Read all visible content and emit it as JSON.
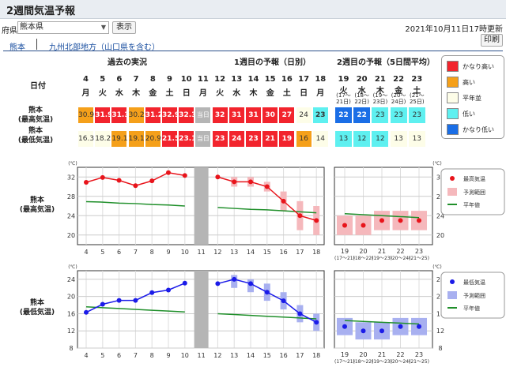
{
  "page": {
    "title": "2週間気温予報",
    "pref_label": "府県",
    "pref_value": "熊本県",
    "show_button": "表示",
    "updated": "2021年10月11日17時更新",
    "print_button": "印刷",
    "tabs": [
      "熊本",
      "九州北部地方（山口県を含む）"
    ]
  },
  "sections": {
    "date_label": "日付",
    "past": "過去の実況",
    "week1": "1週目の予報（日別）",
    "week2": "2週目の予報（5日間平均）"
  },
  "days": [
    {
      "d": "4",
      "w": "月"
    },
    {
      "d": "5",
      "w": "火"
    },
    {
      "d": "6",
      "w": "水"
    },
    {
      "d": "7",
      "w": "木"
    },
    {
      "d": "8",
      "w": "金"
    },
    {
      "d": "9",
      "w": "土"
    },
    {
      "d": "10",
      "w": "日"
    },
    {
      "d": "11",
      "w": "月"
    },
    {
      "d": "12",
      "w": "火"
    },
    {
      "d": "13",
      "w": "水"
    },
    {
      "d": "14",
      "w": "木"
    },
    {
      "d": "15",
      "w": "金"
    },
    {
      "d": "16",
      "w": "土"
    },
    {
      "d": "17",
      "w": "日"
    },
    {
      "d": "18",
      "w": "月"
    }
  ],
  "week2_days": [
    {
      "d": "19",
      "w": "火",
      "r": "(17〜",
      "r2": "21日)"
    },
    {
      "d": "20",
      "w": "水",
      "r": "(18〜",
      "r2": "22日)"
    },
    {
      "d": "21",
      "w": "木",
      "r": "(19〜",
      "r2": "23日)"
    },
    {
      "d": "22",
      "w": "金",
      "r": "(20〜",
      "r2": "24日)"
    },
    {
      "d": "23",
      "w": "土",
      "r": "(21〜",
      "r2": "25日)"
    }
  ],
  "rows": [
    {
      "label1": "熊本",
      "label2": "(最高気温)",
      "values": [
        "30.9",
        "31.9",
        "31.3",
        "30.2",
        "31.2",
        "32.9",
        "32.3",
        "当日",
        "32",
        "31",
        "31",
        "30",
        "27",
        "24",
        "23"
      ],
      "classes": [
        "h",
        "vh",
        "vh",
        "h",
        "vh",
        "vh",
        "vh",
        "today",
        "vh",
        "vh",
        "vh",
        "vh",
        "vh",
        "n",
        "l"
      ],
      "w2": [
        "22",
        "22",
        "23",
        "23",
        "23"
      ],
      "w2classes": [
        "vl",
        "vl",
        "l",
        "l",
        "l"
      ]
    },
    {
      "label1": "熊本",
      "label2": "(最低気温)",
      "values": [
        "16.3",
        "18.2",
        "19.1",
        "19.1",
        "20.9",
        "21.5",
        "23.1",
        "当日",
        "23",
        "24",
        "23",
        "21",
        "19",
        "16",
        "14"
      ],
      "classes": [
        "n",
        "n",
        "h",
        "h",
        "h",
        "vh",
        "vh",
        "today",
        "vh",
        "vh",
        "vh",
        "vh",
        "vh",
        "h",
        "n"
      ],
      "w2": [
        "13",
        "12",
        "12",
        "13",
        "13"
      ],
      "w2classes": [
        "l",
        "l",
        "l",
        "n",
        "n"
      ]
    }
  ],
  "legend": [
    {
      "label": "かなり高い",
      "color": "#f2242d"
    },
    {
      "label": "高い",
      "color": "#f5a01a"
    },
    {
      "label": "平年並",
      "color": "#fdfde8"
    },
    {
      "label": "低い",
      "color": "#5ef0f0"
    },
    {
      "label": "かなり低い",
      "color": "#1a6ee6"
    }
  ],
  "chart_legend_max": [
    {
      "label": "最高気温"
    },
    {
      "label": "予測範囲"
    },
    {
      "label": "平年値"
    }
  ],
  "chart_legend_min": [
    {
      "label": "最低気温"
    },
    {
      "label": "予測範囲"
    },
    {
      "label": "平年値"
    }
  ],
  "chart_data": [
    {
      "type": "line",
      "title": "",
      "ylabel": "(℃)",
      "row_label": [
        "熊本",
        "(最高気温)"
      ],
      "ylim": [
        18,
        34
      ],
      "yticks": [
        20,
        24,
        28,
        32
      ],
      "x": [
        "4",
        "5",
        "6",
        "7",
        "8",
        "9",
        "10",
        "11",
        "12",
        "13",
        "14",
        "15",
        "16",
        "17",
        "18"
      ],
      "series": [
        {
          "name": "最高気温",
          "color": "#e8141b",
          "past": [
            30.9,
            31.9,
            31.3,
            30.2,
            31.2,
            32.9,
            32.3
          ],
          "forecast": [
            32,
            31,
            31,
            30,
            27,
            24,
            23
          ]
        },
        {
          "name": "平年値",
          "color": "#1f8f2a",
          "past": [
            26.9,
            26.8,
            26.6,
            26.5,
            26.3,
            26.2,
            26.0
          ],
          "forecast": [
            25.7,
            25.5,
            25.3,
            25.2,
            25.0,
            24.8,
            24.6
          ]
        }
      ],
      "forecast_range": [
        [
          32,
          32
        ],
        [
          30,
          32
        ],
        [
          30,
          32
        ],
        [
          29,
          31
        ],
        [
          25,
          29
        ],
        [
          21,
          27
        ],
        [
          20,
          26
        ]
      ],
      "week2": {
        "x": [
          "19",
          "20",
          "21",
          "22",
          "23"
        ],
        "x2": [
          "(17〜21)",
          "(18〜22)",
          "(19〜23)",
          "(20〜24)",
          "(21〜25)"
        ],
        "values": [
          22,
          22,
          23,
          23,
          23
        ],
        "range": [
          [
            20,
            24
          ],
          [
            20,
            24
          ],
          [
            21,
            25
          ],
          [
            21,
            25
          ],
          [
            21,
            25
          ]
        ],
        "normal": [
          24.4,
          24.2,
          24.0,
          23.8,
          23.6
        ]
      }
    },
    {
      "type": "line",
      "title": "",
      "ylabel": "(℃)",
      "row_label": [
        "熊本",
        "(最低気温)"
      ],
      "ylim": [
        8,
        26
      ],
      "yticks": [
        8,
        12,
        16,
        20,
        24
      ],
      "x": [
        "4",
        "5",
        "6",
        "7",
        "8",
        "9",
        "10",
        "11",
        "12",
        "13",
        "14",
        "15",
        "16",
        "17",
        "18"
      ],
      "series": [
        {
          "name": "最低気温",
          "color": "#1b1be8",
          "past": [
            16.3,
            18.2,
            19.1,
            19.1,
            20.9,
            21.5,
            23.1
          ],
          "forecast": [
            23,
            24,
            23,
            21,
            19,
            16,
            14
          ]
        },
        {
          "name": "平年値",
          "color": "#1f8f2a",
          "past": [
            17.6,
            17.4,
            17.2,
            17.0,
            16.8,
            16.6,
            16.4
          ],
          "forecast": [
            16.0,
            15.8,
            15.6,
            15.4,
            15.2,
            15.0,
            14.8
          ]
        }
      ],
      "forecast_range": [
        [
          23,
          23
        ],
        [
          22,
          25
        ],
        [
          21,
          24
        ],
        [
          19,
          23
        ],
        [
          17,
          21
        ],
        [
          14,
          18
        ],
        [
          12,
          16
        ]
      ],
      "week2": {
        "x": [
          "19",
          "20",
          "21",
          "22",
          "23"
        ],
        "x2": [
          "(17〜21)",
          "(18〜22)",
          "(19〜23)",
          "(20〜24)",
          "(21〜25)"
        ],
        "values": [
          13,
          12,
          12,
          13,
          13
        ],
        "range": [
          [
            11,
            15
          ],
          [
            10,
            14
          ],
          [
            10,
            14
          ],
          [
            11,
            15
          ],
          [
            11,
            15
          ]
        ],
        "normal": [
          14.4,
          14.2,
          14.0,
          13.8,
          13.6
        ]
      }
    }
  ]
}
